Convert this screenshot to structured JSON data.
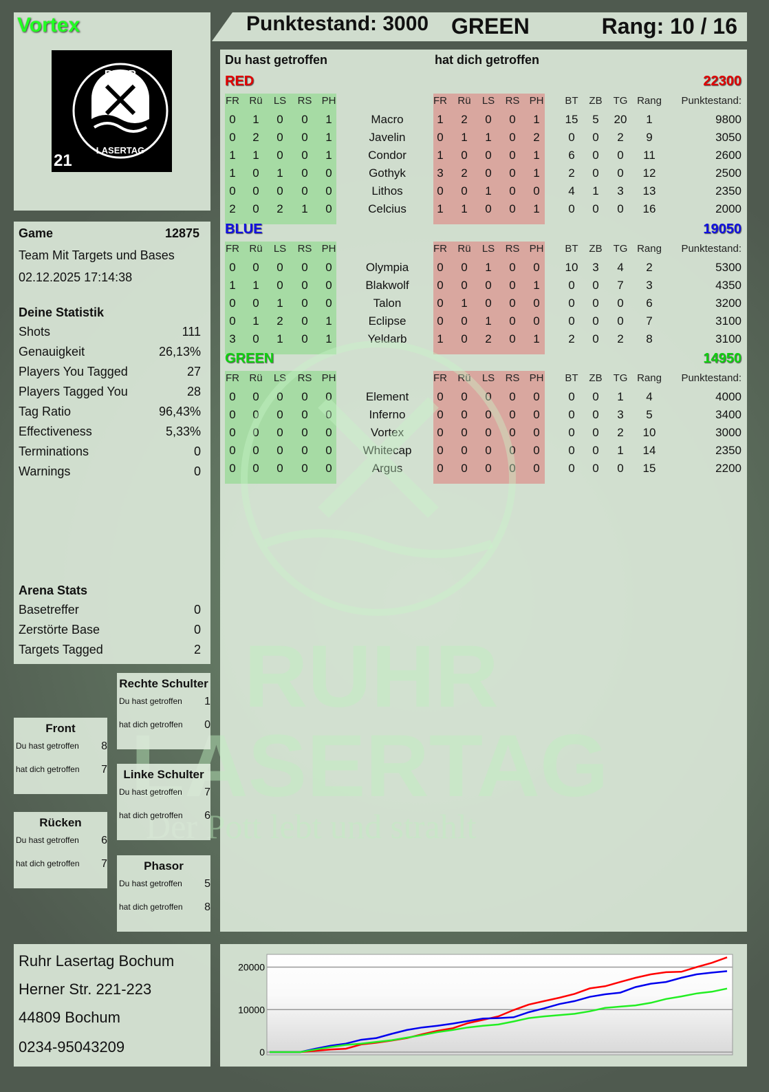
{
  "player": {
    "name": "Vortex",
    "logo_text": "RUHR LASERTAG 21"
  },
  "header": {
    "score": "Punktestand: 3000",
    "team": "GREEN",
    "rank": "Rang: 10 / 16"
  },
  "main": {
    "you_hit": "Du hast getroffen",
    "hit_you": "hat dich getroffen",
    "columns": [
      "FR",
      "Rü",
      "LS",
      "RS",
      "PH"
    ],
    "extra_columns": [
      "BT",
      "ZB",
      "TG",
      "Rang",
      "Punktestand:"
    ],
    "teams": [
      {
        "name": "RED",
        "score": "22300",
        "color": "#e00000",
        "players": [
          {
            "name": "Macro",
            "hit": [
              0,
              1,
              0,
              0,
              1
            ],
            "got": [
              1,
              2,
              0,
              0,
              1
            ],
            "bt": 15,
            "zb": 5,
            "tg": 20,
            "rang": 1,
            "score": 9800
          },
          {
            "name": "Javelin",
            "hit": [
              0,
              2,
              0,
              0,
              1
            ],
            "got": [
              0,
              1,
              1,
              0,
              2
            ],
            "bt": 0,
            "zb": 0,
            "tg": 2,
            "rang": 9,
            "score": 3050
          },
          {
            "name": "Condor",
            "hit": [
              1,
              1,
              0,
              0,
              1
            ],
            "got": [
              1,
              0,
              0,
              0,
              1
            ],
            "bt": 6,
            "zb": 0,
            "tg": 0,
            "rang": 11,
            "score": 2600
          },
          {
            "name": "Gothyk",
            "hit": [
              1,
              0,
              1,
              0,
              0
            ],
            "got": [
              3,
              2,
              0,
              0,
              1
            ],
            "bt": 2,
            "zb": 0,
            "tg": 0,
            "rang": 12,
            "score": 2500
          },
          {
            "name": "Lithos",
            "hit": [
              0,
              0,
              0,
              0,
              0
            ],
            "got": [
              0,
              0,
              1,
              0,
              0
            ],
            "bt": 4,
            "zb": 1,
            "tg": 3,
            "rang": 13,
            "score": 2350
          },
          {
            "name": "Celcius",
            "hit": [
              2,
              0,
              2,
              1,
              0
            ],
            "got": [
              1,
              1,
              0,
              0,
              1
            ],
            "bt": 0,
            "zb": 0,
            "tg": 0,
            "rang": 16,
            "score": 2000
          }
        ]
      },
      {
        "name": "BLUE",
        "score": "19050",
        "color": "#1010e0",
        "players": [
          {
            "name": "Olympia",
            "hit": [
              0,
              0,
              0,
              0,
              0
            ],
            "got": [
              0,
              0,
              1,
              0,
              0
            ],
            "bt": 10,
            "zb": 3,
            "tg": 4,
            "rang": 2,
            "score": 5300
          },
          {
            "name": "Blakwolf",
            "hit": [
              1,
              1,
              0,
              0,
              0
            ],
            "got": [
              0,
              0,
              0,
              0,
              1
            ],
            "bt": 0,
            "zb": 0,
            "tg": 7,
            "rang": 3,
            "score": 4350
          },
          {
            "name": "Talon",
            "hit": [
              0,
              0,
              1,
              0,
              0
            ],
            "got": [
              0,
              1,
              0,
              0,
              0
            ],
            "bt": 0,
            "zb": 0,
            "tg": 0,
            "rang": 6,
            "score": 3200
          },
          {
            "name": "Eclipse",
            "hit": [
              0,
              1,
              2,
              0,
              1
            ],
            "got": [
              0,
              0,
              1,
              0,
              0
            ],
            "bt": 0,
            "zb": 0,
            "tg": 0,
            "rang": 7,
            "score": 3100
          },
          {
            "name": "Yeldarb",
            "hit": [
              3,
              0,
              1,
              0,
              1
            ],
            "got": [
              1,
              0,
              2,
              0,
              1
            ],
            "bt": 2,
            "zb": 0,
            "tg": 2,
            "rang": 8,
            "score": 3100
          }
        ]
      },
      {
        "name": "GREEN",
        "score": "14950",
        "color": "#10d010",
        "players": [
          {
            "name": "Element",
            "hit": [
              0,
              0,
              0,
              0,
              0
            ],
            "got": [
              0,
              0,
              0,
              0,
              0
            ],
            "bt": 0,
            "zb": 0,
            "tg": 1,
            "rang": 4,
            "score": 4000
          },
          {
            "name": "Inferno",
            "hit": [
              0,
              0,
              0,
              0,
              0
            ],
            "got": [
              0,
              0,
              0,
              0,
              0
            ],
            "bt": 0,
            "zb": 0,
            "tg": 3,
            "rang": 5,
            "score": 3400
          },
          {
            "name": "Vortex",
            "hit": [
              0,
              0,
              0,
              0,
              0
            ],
            "got": [
              0,
              0,
              0,
              0,
              0
            ],
            "bt": 0,
            "zb": 0,
            "tg": 2,
            "rang": 10,
            "score": 3000
          },
          {
            "name": "Whitecap",
            "hit": [
              0,
              0,
              0,
              0,
              0
            ],
            "got": [
              0,
              0,
              0,
              0,
              0
            ],
            "bt": 0,
            "zb": 0,
            "tg": 1,
            "rang": 14,
            "score": 2350
          },
          {
            "name": "Argus",
            "hit": [
              0,
              0,
              0,
              0,
              0
            ],
            "got": [
              0,
              0,
              0,
              0,
              0
            ],
            "bt": 0,
            "zb": 0,
            "tg": 0,
            "rang": 15,
            "score": 2200
          }
        ]
      }
    ]
  },
  "game": {
    "label": "Game",
    "id": "12875",
    "mode": "Team Mit Targets und Bases",
    "datetime": "02.12.2025 17:14:38"
  },
  "stats": {
    "title": "Deine Statistik",
    "items": [
      {
        "label": "Shots",
        "value": "111"
      },
      {
        "label": "Genauigkeit",
        "value": "26,13%"
      },
      {
        "label": "Players You Tagged",
        "value": "27"
      },
      {
        "label": "Players Tagged You",
        "value": "28"
      },
      {
        "label": "Tag Ratio",
        "value": "96,43%"
      },
      {
        "label": "Effectiveness",
        "value": "5,33%"
      },
      {
        "label": "Terminations",
        "value": "0"
      },
      {
        "label": "Warnings",
        "value": "0"
      }
    ]
  },
  "arena": {
    "title": "Arena Stats",
    "items": [
      {
        "label": "Basetreffer",
        "value": "0"
      },
      {
        "label": "Zerstörte Base",
        "value": "0"
      },
      {
        "label": "Targets Tagged",
        "value": "2"
      }
    ]
  },
  "zones": [
    {
      "title": "Front",
      "you_hit_label": "Du hast getroffen",
      "you_hit": "8",
      "hit_you_label": "hat dich getroffen",
      "hit_you": "7"
    },
    {
      "title": "Rechte Schulter",
      "you_hit_label": "Du hast getroffen",
      "you_hit": "1",
      "hit_you_label": "hat dich getroffen",
      "hit_you": "0"
    },
    {
      "title": "Linke Schulter",
      "you_hit_label": "Du hast getroffen",
      "you_hit": "7",
      "hit_you_label": "hat dich getroffen",
      "hit_you": "6"
    },
    {
      "title": "Rücken",
      "you_hit_label": "Du hast getroffen",
      "you_hit": "6",
      "hit_you_label": "hat dich getroffen",
      "hit_you": "7"
    },
    {
      "title": "Phasor",
      "you_hit_label": "Du hast getroffen",
      "you_hit": "5",
      "hit_you_label": "hat dich getroffen",
      "hit_you": "8"
    }
  ],
  "address": {
    "name": "Ruhr Lasertag Bochum",
    "street": "Herner Str. 221-223",
    "city": "44809 Bochum",
    "phone": "0234-95043209"
  },
  "watermark": {
    "line1": "RUHR",
    "line2": "LASERTAG",
    "slogan": "Der Pott lebt und strahlt"
  },
  "chart_data": {
    "type": "line",
    "ylim": [
      0,
      23000
    ],
    "yticks": [
      "0",
      "10000",
      "20000"
    ],
    "grid": true,
    "series": [
      {
        "color": "#ff0000",
        "values": [
          0,
          0,
          0,
          300,
          600,
          800,
          1800,
          2200,
          2700,
          3300,
          4200,
          5000,
          5600,
          6800,
          7600,
          8400,
          9900,
          11200,
          12000,
          12800,
          13700,
          15000,
          15500,
          16500,
          17500,
          18300,
          18800,
          18900,
          20000,
          21000,
          22300
        ]
      },
      {
        "color": "#0000ee",
        "values": [
          0,
          0,
          0,
          800,
          1500,
          2000,
          2900,
          3300,
          4300,
          5200,
          5800,
          6200,
          6700,
          7300,
          7900,
          8000,
          8200,
          9400,
          10300,
          11300,
          12000,
          13000,
          13600,
          14000,
          15300,
          16100,
          16500,
          17500,
          18300,
          18700,
          19050
        ]
      },
      {
        "color": "#22ee22",
        "values": [
          0,
          0,
          0,
          600,
          1200,
          1700,
          2000,
          2400,
          2800,
          3400,
          4000,
          4700,
          5200,
          5800,
          6200,
          6500,
          7200,
          8000,
          8400,
          8700,
          9000,
          9600,
          10400,
          10700,
          11000,
          11600,
          12500,
          13100,
          13800,
          14200,
          14950
        ]
      }
    ]
  }
}
